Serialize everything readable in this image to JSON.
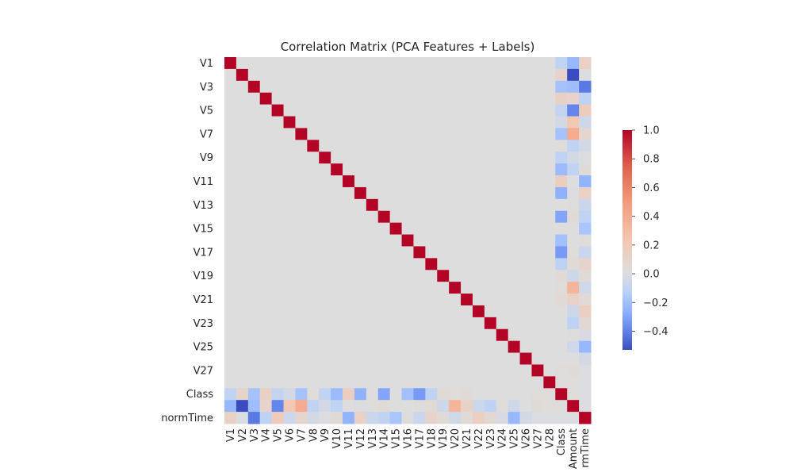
{
  "chart_data": {
    "type": "heatmap",
    "title": "Correlation Matrix (PCA Features + Labels)",
    "variables": [
      "V1",
      "V2",
      "V3",
      "V4",
      "V5",
      "V6",
      "V7",
      "V8",
      "V9",
      "V10",
      "V11",
      "V12",
      "V13",
      "V14",
      "V15",
      "V16",
      "V17",
      "V18",
      "V19",
      "V20",
      "V21",
      "V22",
      "V23",
      "V24",
      "V25",
      "V26",
      "V27",
      "V28",
      "Class",
      "Amount",
      "normTime"
    ],
    "y_tick_labels": [
      "V1",
      "V3",
      "V5",
      "V7",
      "V9",
      "V11",
      "V13",
      "V15",
      "V17",
      "V19",
      "V21",
      "V23",
      "V25",
      "V27",
      "Class",
      "normTime"
    ],
    "x_tick_labels": [
      "V1",
      "V2",
      "V3",
      "V4",
      "V5",
      "V6",
      "V7",
      "V8",
      "V9",
      "V10",
      "V11",
      "V12",
      "V13",
      "V14",
      "V15",
      "V16",
      "V17",
      "V18",
      "V19",
      "V20",
      "V21",
      "V22",
      "V23",
      "V24",
      "V25",
      "V26",
      "V27",
      "V28",
      "Class",
      "Amount",
      "normTime"
    ],
    "x_tick_labels_display": [
      "V1",
      "V2",
      "V3",
      "V4",
      "V5",
      "V6",
      "V7",
      "V8",
      "V9",
      "V10",
      "V11",
      "V12",
      "V13",
      "V14",
      "V15",
      "V16",
      "V17",
      "V18",
      "V19",
      "V20",
      "V21",
      "V22",
      "V23",
      "V24",
      "V25",
      "V26",
      "V27",
      "V28",
      "Class",
      "Amount",
      "rmTime"
    ],
    "correlations_with_labels": {
      "Class": [
        -0.1,
        0.09,
        -0.19,
        0.13,
        -0.09,
        -0.04,
        -0.19,
        0.02,
        -0.1,
        -0.22,
        0.15,
        -0.26,
        0.0,
        -0.3,
        0.0,
        -0.2,
        -0.33,
        -0.11,
        0.03,
        0.02,
        0.04,
        0.0,
        0.0,
        0.0,
        0.0,
        0.0,
        0.02,
        0.01
      ],
      "Amount": [
        -0.23,
        -0.53,
        -0.21,
        0.1,
        -0.39,
        0.22,
        0.4,
        -0.1,
        -0.04,
        -0.1,
        0.0,
        -0.01,
        0.01,
        0.03,
        -0.0,
        -0.0,
        0.01,
        0.04,
        -0.06,
        0.34,
        0.11,
        -0.06,
        -0.11,
        0.01,
        -0.05,
        -0.0,
        0.03,
        0.01,
        0.01
      ],
      "normTime": [
        0.12,
        -0.01,
        -0.42,
        -0.11,
        0.17,
        -0.06,
        0.08,
        -0.04,
        -0.01,
        0.03,
        -0.25,
        0.12,
        -0.07,
        -0.1,
        -0.18,
        0.01,
        -0.07,
        0.09,
        0.03,
        -0.05,
        0.04,
        0.14,
        0.05,
        -0.02,
        -0.23,
        -0.04,
        -0.01,
        -0.01,
        -0.01,
        -0.01
      ]
    },
    "colorbar": {
      "colormap": "coolwarm",
      "vmin": -0.53,
      "vmax": 1.0,
      "ticks": [
        1.0,
        0.8,
        0.6,
        0.4,
        0.2,
        0.0,
        -0.2,
        -0.4
      ],
      "tick_labels": [
        "1.0",
        "0.8",
        "0.6",
        "0.4",
        "0.2",
        "0.0",
        "−0.2",
        "−0.4"
      ]
    },
    "grid": false
  }
}
